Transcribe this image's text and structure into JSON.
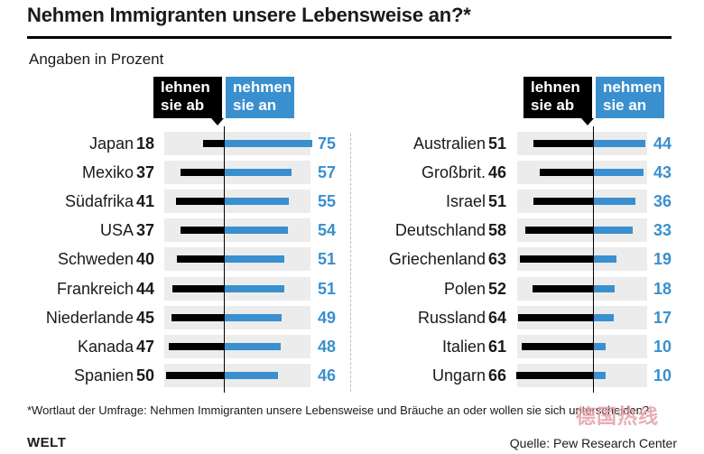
{
  "header": {
    "title": "Nehmen Immigranten unsere Lebensweise an?*",
    "subtitle": "Angaben in Prozent"
  },
  "legend": {
    "reject_line1": "lehnen",
    "reject_line2": "sie ab",
    "accept_line1": "nehmen",
    "accept_line2": "sie an"
  },
  "chart_data": [
    {
      "type": "bar",
      "title": "Nehmen Immigranten unsere Lebensweise an?*",
      "unit": "Angaben in Prozent",
      "categories": [
        "Japan",
        "Mexiko",
        "Südafrika",
        "USA",
        "Schweden",
        "Frankreich",
        "Niederlande",
        "Kanada",
        "Spanien"
      ],
      "series": [
        {
          "name": "lehnen sie ab",
          "values": [
            18,
            37,
            41,
            37,
            40,
            44,
            45,
            47,
            50
          ]
        },
        {
          "name": "nehmen sie an",
          "values": [
            75,
            57,
            55,
            54,
            51,
            51,
            49,
            48,
            46
          ]
        }
      ],
      "orientation": "horizontal-diverging"
    },
    {
      "type": "bar",
      "title": "Nehmen Immigranten unsere Lebensweise an?*",
      "unit": "Angaben in Prozent",
      "categories": [
        "Australien",
        "Großbrit.",
        "Israel",
        "Deutschland",
        "Griechenland",
        "Polen",
        "Russland",
        "Italien",
        "Ungarn"
      ],
      "series": [
        {
          "name": "lehnen sie ab",
          "values": [
            51,
            46,
            51,
            58,
            63,
            52,
            64,
            61,
            66
          ]
        },
        {
          "name": "nehmen sie an",
          "values": [
            44,
            43,
            36,
            33,
            19,
            18,
            17,
            10,
            10
          ]
        }
      ],
      "orientation": "horizontal-diverging"
    }
  ],
  "footer": {
    "footnote": "*Wortlaut der Umfrage: Nehmen Immigranten unsere Lebensweise und Bräuche an oder wollen sie sich unterscheiden?",
    "logo": "WELT",
    "source": "Quelle: Pew Research Center",
    "watermark": "德国热线"
  },
  "colors": {
    "reject": "#000000",
    "accept": "#3a8fcf",
    "row_background": "#ececec"
  }
}
